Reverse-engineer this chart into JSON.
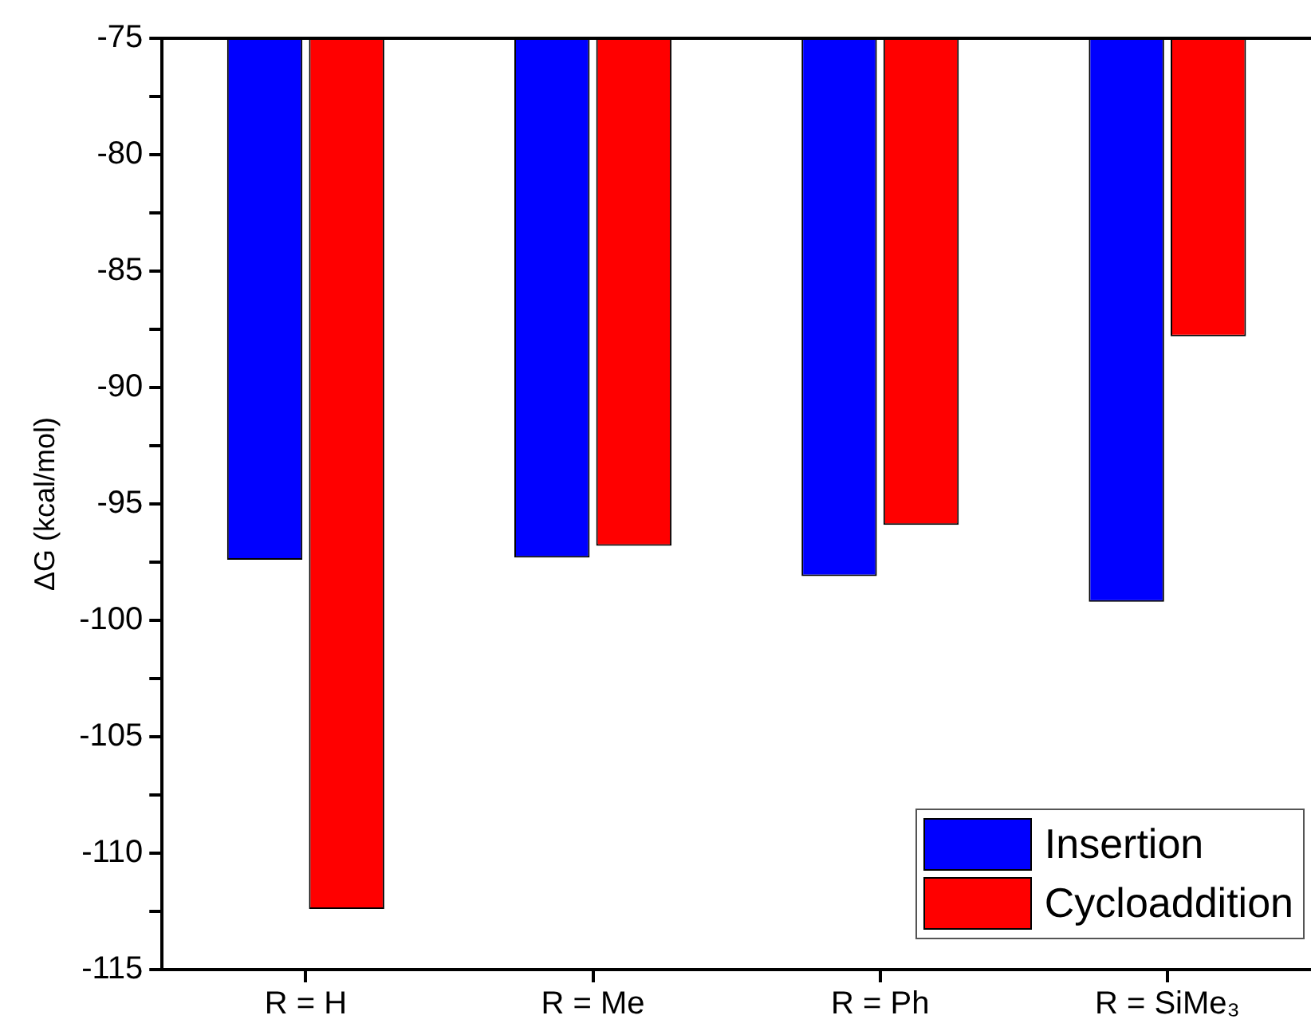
{
  "chart_data": {
    "type": "bar",
    "ylabel": "ΔG (kcal/mol)",
    "categories": [
      "R = H",
      "R = Me",
      "R = Ph",
      "R = SiMe₃"
    ],
    "series": [
      {
        "name": "Insertion",
        "color": "#0000ff",
        "values": [
          -97.4,
          -97.3,
          -98.1,
          -99.2
        ]
      },
      {
        "name": "Cycloaddition",
        "color": "#ff0000",
        "values": [
          -112.4,
          -96.8,
          -95.9,
          -87.8
        ]
      }
    ],
    "ylim": [
      -115,
      -75
    ],
    "yticks": [
      -115,
      {
        "value": -112.5,
        "label": null
      },
      -110,
      {
        "value": -107.5,
        "label": null
      },
      -105,
      {
        "value": -102.5,
        "label": null
      },
      -100,
      {
        "value": -97.5,
        "label": null
      },
      -95,
      {
        "value": -92.5,
        "label": null
      },
      -90,
      {
        "value": -87.5,
        "label": null
      },
      -85,
      {
        "value": -82.5,
        "label": null
      },
      -80,
      {
        "value": -77.5,
        "label": null
      },
      -75
    ],
    "grid": false,
    "legend": "bottom right"
  }
}
